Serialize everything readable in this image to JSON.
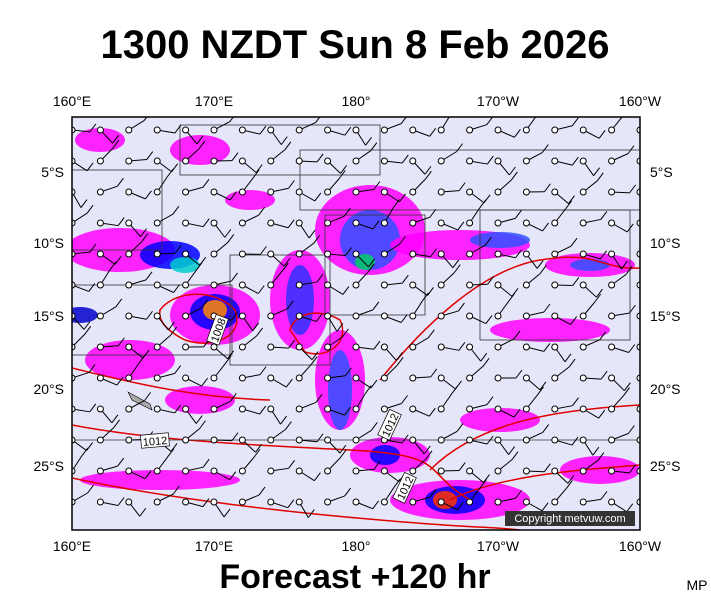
{
  "title": "1300 NZDT Sun 8 Feb 2026",
  "top_axis": [
    "160°E",
    "170°E",
    "180°",
    "170°W",
    "160°W"
  ],
  "bottom_axis": [
    "160°E",
    "170°E",
    "180°",
    "170°W",
    "160°W"
  ],
  "left_axis": [
    "5°S",
    "10°S",
    "15°S",
    "20°S",
    "25°S"
  ],
  "right_axis": [
    "5°S",
    "10°S",
    "15°S",
    "20°S",
    "25°S"
  ],
  "contour_labels": [
    "1012",
    "1008",
    "1012",
    "1012"
  ],
  "copyright": "Copyright metvuw.com",
  "footer": "Forecast +120 hr",
  "corner": "MP"
}
